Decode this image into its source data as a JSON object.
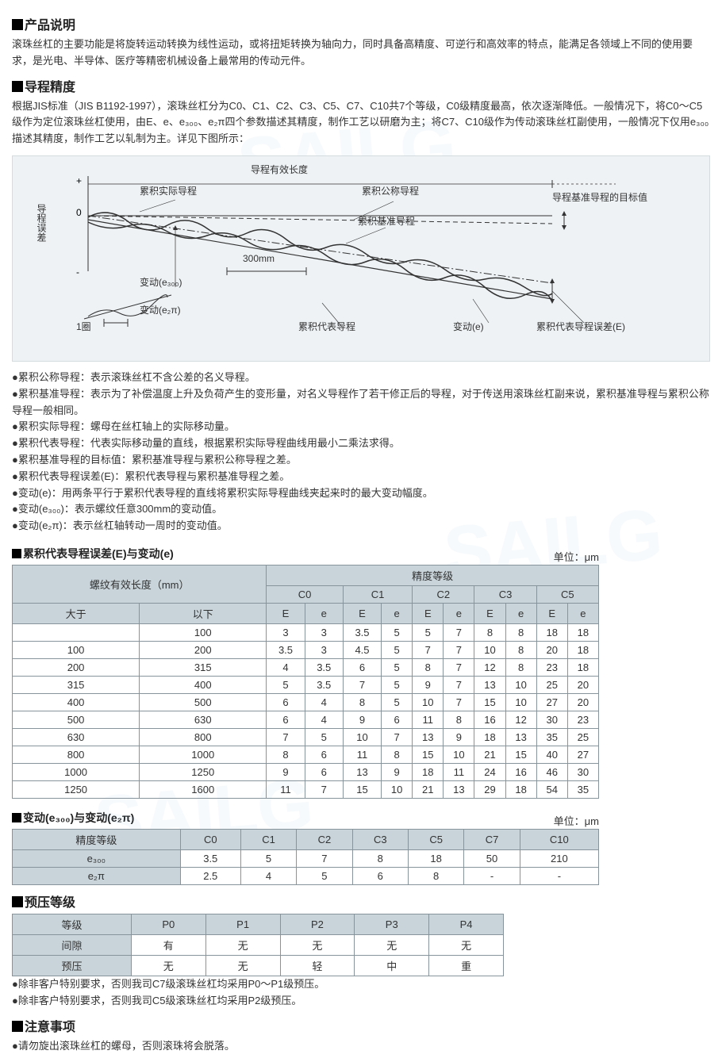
{
  "watermark_color": "#7aa8d4",
  "sections": {
    "prod_desc": {
      "title": "产品说明",
      "text": "滚珠丝杠的主要功能是将旋转运动转换为线性运动，或将扭矩转换为轴向力，同时具备高精度、可逆行和高效率的特点，能满足各领域上不同的使用要求，是光电、半导体、医疗等精密机械设备上最常用的传动元件。"
    },
    "lead_acc": {
      "title": "导程精度",
      "text": "根据JIS标准（JIS B1192-1997），滚珠丝杠分为C0、C1、C2、C3、C5、C7、C10共7个等级，C0级精度最高，依次逐渐降低。一般情况下，将C0～C5级作为定位滚珠丝杠使用，由E、e、e₃₀₀、e₂π四个参数描述其精度，制作工艺以研磨为主；将C7、C10级作为传动滚珠丝杠副使用，一般情况下仅用e₃₀₀描述其精度，制作工艺以轧制为主。详见下图所示："
    },
    "preload": {
      "title": "预压等级"
    },
    "caution": {
      "title": "注意事项",
      "note": "请勿旋出滚珠丝杠的螺母，否则滚珠将会脱落。"
    }
  },
  "diagram": {
    "bg": "#eef2f5",
    "line_color": "#333333",
    "labels": {
      "eff_len": "导程有效长度",
      "actual": "累积实际导程",
      "nominal": "累积公称导程",
      "target": "导程基准导程的目标值",
      "ref": "累积基准导程",
      "yaxis": "导程误差",
      "e300": "变动(e₃₀₀)",
      "mm300": "300mm",
      "e2pi": "变动(e₂π)",
      "onerot": "1圈",
      "rep": "累积代表导程",
      "e": "变动(e)",
      "repE": "累积代表导程误差(E)"
    }
  },
  "definitions": [
    "累积公称导程：表示滚珠丝杠不含公差的名义导程。",
    "累积基准导程：表示为了补偿温度上升及负荷产生的变形量，对名义导程作了若干修正后的导程，对于传送用滚珠丝杠副来说，累积基准导程与累积公称导程一般相同。",
    "累积实际导程：螺母在丝杠轴上的实际移动量。",
    "累积代表导程：代表实际移动量的直线，根据累积实际导程曲线用最小二乘法求得。",
    "累积基准导程的目标值：累积基准导程与累积公称导程之差。",
    "累积代表导程误差(E)：累积代表导程与累积基准导程之差。",
    "变动(e)：用两条平行于累积代表导程的直线将累积实际导程曲线夹起来时的最大变动幅度。",
    "变动(e₃₀₀)：表示螺纹任意300mm的变动值。",
    "变动(e₂π)：表示丝杠轴转动一周时的变动值。"
  ],
  "table1": {
    "title": "累积代表导程误差(E)与变动(e)",
    "unit": "单位：μm",
    "col_head_top": "螺纹有效长度（mm）",
    "col_head_grade": "精度等级",
    "grades": [
      "C0",
      "C1",
      "C2",
      "C3",
      "C5"
    ],
    "sub": [
      "E",
      "e"
    ],
    "len_cols": [
      "大于",
      "以下"
    ],
    "rows": [
      [
        "",
        "100",
        "3",
        "3",
        "3.5",
        "5",
        "5",
        "7",
        "8",
        "8",
        "18",
        "18"
      ],
      [
        "100",
        "200",
        "3.5",
        "3",
        "4.5",
        "5",
        "7",
        "7",
        "10",
        "8",
        "20",
        "18"
      ],
      [
        "200",
        "315",
        "4",
        "3.5",
        "6",
        "5",
        "8",
        "7",
        "12",
        "8",
        "23",
        "18"
      ],
      [
        "315",
        "400",
        "5",
        "3.5",
        "7",
        "5",
        "9",
        "7",
        "13",
        "10",
        "25",
        "20"
      ],
      [
        "400",
        "500",
        "6",
        "4",
        "8",
        "5",
        "10",
        "7",
        "15",
        "10",
        "27",
        "20"
      ],
      [
        "500",
        "630",
        "6",
        "4",
        "9",
        "6",
        "11",
        "8",
        "16",
        "12",
        "30",
        "23"
      ],
      [
        "630",
        "800",
        "7",
        "5",
        "10",
        "7",
        "13",
        "9",
        "18",
        "13",
        "35",
        "25"
      ],
      [
        "800",
        "1000",
        "8",
        "6",
        "11",
        "8",
        "15",
        "10",
        "21",
        "15",
        "40",
        "27"
      ],
      [
        "1000",
        "1250",
        "9",
        "6",
        "13",
        "9",
        "18",
        "11",
        "24",
        "16",
        "46",
        "30"
      ],
      [
        "1250",
        "1600",
        "11",
        "7",
        "15",
        "10",
        "21",
        "13",
        "29",
        "18",
        "54",
        "35"
      ]
    ]
  },
  "table2": {
    "title": "变动(e₃₀₀)与变动(e₂π)",
    "unit": "单位：μm",
    "row_head": "精度等级",
    "grades": [
      "C0",
      "C1",
      "C2",
      "C3",
      "C5",
      "C7",
      "C10"
    ],
    "rows": [
      {
        "label": "e₃₀₀",
        "vals": [
          "3.5",
          "5",
          "7",
          "8",
          "18",
          "50",
          "210"
        ]
      },
      {
        "label": "e₂π",
        "vals": [
          "2.5",
          "4",
          "5",
          "6",
          "8",
          "-",
          "-"
        ]
      }
    ]
  },
  "table3": {
    "header": [
      "等级",
      "P0",
      "P1",
      "P2",
      "P3",
      "P4"
    ],
    "rows": [
      [
        "间隙",
        "有",
        "无",
        "无",
        "无",
        "无"
      ],
      [
        "预压",
        "无",
        "无",
        "轻",
        "中",
        "重"
      ]
    ],
    "notes": [
      "除非客户特别要求，否则我司C7级滚珠丝杠均采用P0～P1级预压。",
      "除非客户特别要求，否则我司C5级滚珠丝杠均采用P2级预压。"
    ]
  }
}
